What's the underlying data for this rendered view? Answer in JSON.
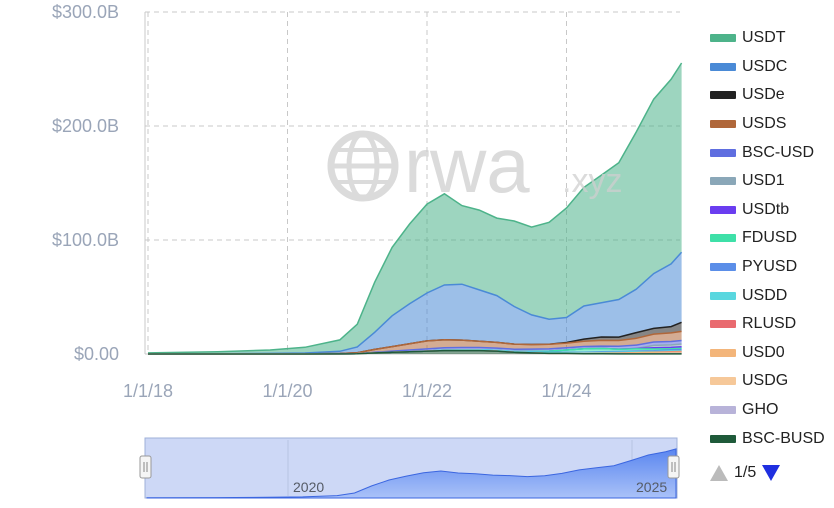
{
  "chart_data": {
    "type": "area",
    "stacked": true,
    "y_ticks": [
      "$0.00",
      "$100.0B",
      "$200.0B",
      "$300.0B"
    ],
    "x_ticks": [
      "1/1/18",
      "1/1/20",
      "1/1/22",
      "1/1/24"
    ],
    "ylim": [
      0,
      300
    ],
    "grid": true,
    "legend_position": "right",
    "x": [
      2018.0,
      2019.0,
      2019.75,
      2020.25,
      2020.75,
      2021.0,
      2021.25,
      2021.5,
      2021.75,
      2022.0,
      2022.25,
      2022.5,
      2022.75,
      2023.0,
      2023.25,
      2023.5,
      2023.75,
      2024.0,
      2024.25,
      2024.5,
      2024.75,
      2025.0,
      2025.25,
      2025.5,
      2025.65
    ],
    "series": [
      {
        "name": "BSC-BUSD",
        "color": "#1f5a3a",
        "values": [
          0,
          0,
          0,
          0,
          0.1,
          0.3,
          1.0,
          1.5,
          2.0,
          2.5,
          3.0,
          3.0,
          3.0,
          2.5,
          1.5,
          1.0,
          0.5,
          0.5,
          0.3,
          0.2,
          0.1,
          0.1,
          0.1,
          0.1,
          0.1
        ]
      },
      {
        "name": "GHO",
        "color": "#b8b3d9",
        "values": [
          0,
          0,
          0,
          0,
          0,
          0,
          0,
          0,
          0,
          0,
          0,
          0,
          0,
          0,
          0,
          0,
          0,
          0.05,
          0.1,
          0.1,
          0.2,
          0.2,
          0.2,
          0.3,
          0.3
        ]
      },
      {
        "name": "USDG",
        "color": "#f6c899",
        "values": [
          0,
          0,
          0,
          0,
          0,
          0,
          0,
          0,
          0,
          0,
          0,
          0,
          0,
          0,
          0,
          0,
          0,
          0,
          0,
          0,
          0,
          0,
          0,
          0.2,
          0.3
        ]
      },
      {
        "name": "USD0",
        "color": "#f3b57a",
        "values": [
          0,
          0,
          0,
          0,
          0,
          0,
          0,
          0,
          0,
          0,
          0,
          0,
          0,
          0,
          0,
          0,
          0,
          0,
          0.1,
          0.3,
          0.5,
          0.8,
          1.0,
          1.0,
          1.0
        ]
      },
      {
        "name": "RLUSD",
        "color": "#e96a6f",
        "values": [
          0,
          0,
          0,
          0,
          0,
          0,
          0,
          0,
          0,
          0,
          0,
          0,
          0,
          0,
          0,
          0,
          0,
          0,
          0,
          0,
          0,
          0.1,
          0.2,
          0.4,
          0.5
        ]
      },
      {
        "name": "USDD",
        "color": "#59d7df",
        "values": [
          0,
          0,
          0,
          0,
          0,
          0,
          0,
          0,
          0,
          0,
          0.5,
          0.7,
          0.7,
          0.7,
          0.7,
          0.7,
          0.7,
          0.7,
          0.7,
          0.7,
          0.7,
          0.7,
          0.7,
          0.7,
          0.7
        ]
      },
      {
        "name": "PYUSD",
        "color": "#5b8ee8",
        "values": [
          0,
          0,
          0,
          0,
          0,
          0,
          0,
          0,
          0,
          0,
          0,
          0,
          0,
          0,
          0,
          0.1,
          0.3,
          0.3,
          0.4,
          0.6,
          0.7,
          0.6,
          0.7,
          0.9,
          1.0
        ]
      },
      {
        "name": "FDUSD",
        "color": "#3ee0a8",
        "values": [
          0,
          0,
          0,
          0,
          0,
          0,
          0,
          0,
          0,
          0,
          0,
          0,
          0,
          0,
          0,
          0.5,
          1.0,
          2.0,
          3.0,
          3.0,
          2.0,
          2.0,
          1.5,
          1.0,
          1.0
        ]
      },
      {
        "name": "USDtb",
        "color": "#6a3df0",
        "values": [
          0,
          0,
          0,
          0,
          0,
          0,
          0,
          0,
          0,
          0,
          0,
          0,
          0,
          0,
          0,
          0,
          0,
          0,
          0,
          0,
          0.1,
          0.3,
          1.0,
          1.2,
          1.4
        ]
      },
      {
        "name": "USD1",
        "color": "#8aa7b8",
        "values": [
          0,
          0,
          0,
          0,
          0,
          0,
          0,
          0,
          0,
          0,
          0,
          0,
          0,
          0,
          0,
          0,
          0,
          0,
          0,
          0,
          0,
          0,
          2.1,
          2.2,
          2.5
        ]
      },
      {
        "name": "BSC-USD",
        "color": "#5f6ee0",
        "values": [
          0,
          0,
          0,
          0,
          0,
          0,
          0.5,
          1.0,
          1.5,
          2.0,
          2.0,
          2.0,
          2.0,
          2.0,
          2.0,
          2.0,
          2.0,
          2.0,
          2.0,
          2.0,
          2.5,
          3.0,
          3.0,
          3.0,
          3.0
        ]
      },
      {
        "name": "USDS",
        "color": "#b0673a",
        "values": [
          0,
          0,
          0,
          0.05,
          0.3,
          0.8,
          2.5,
          4.0,
          5.5,
          7.0,
          7.0,
          6.5,
          5.5,
          5.0,
          4.5,
          4.0,
          4.0,
          4.0,
          4.5,
          5.0,
          5.0,
          6.0,
          7.0,
          7.5,
          8.0
        ]
      },
      {
        "name": "USDe",
        "color": "#222222",
        "values": [
          0,
          0,
          0,
          0,
          0,
          0,
          0,
          0,
          0,
          0,
          0,
          0,
          0,
          0,
          0,
          0,
          0,
          0.5,
          2.0,
          3.0,
          3.0,
          5.0,
          5.0,
          5.5,
          8.0
        ]
      },
      {
        "name": "USDC",
        "color": "#4a8ad6",
        "values": [
          0,
          0.3,
          0.5,
          0.8,
          2.0,
          5.0,
          15.0,
          27.0,
          35.0,
          42.0,
          48.0,
          49.0,
          45.0,
          41.0,
          33.0,
          26.0,
          22.0,
          22.0,
          29.0,
          30.0,
          33.0,
          38.0,
          48.0,
          55.0,
          61.5
        ]
      },
      {
        "name": "USDT",
        "color": "#4db38a",
        "values": [
          1.0,
          1.7,
          3.0,
          5.0,
          10.0,
          20.0,
          44.0,
          60.0,
          70.0,
          78.0,
          80.0,
          69.0,
          70.0,
          68.0,
          75.0,
          77.0,
          85.0,
          96.0,
          104.0,
          112.0,
          120.0,
          138.0,
          153.0,
          162.0,
          166.0
        ]
      }
    ],
    "navigator_labels": [
      "2020",
      "2025"
    ]
  },
  "watermark": {
    "brand": "rwa",
    "suffix": ".xyz"
  },
  "legend": {
    "items": [
      "USDT",
      "USDC",
      "USDe",
      "USDS",
      "BSC-USD",
      "USD1",
      "USDtb",
      "FDUSD",
      "PYUSD",
      "USDD",
      "RLUSD",
      "USD0",
      "USDG",
      "GHO",
      "BSC-BUSD"
    ],
    "colors": [
      "#4db38a",
      "#4a8ad6",
      "#222222",
      "#b0673a",
      "#5f6ee0",
      "#8aa7b8",
      "#6a3df0",
      "#3ee0a8",
      "#5b8ee8",
      "#59d7df",
      "#e96a6f",
      "#f3b57a",
      "#f6c899",
      "#b8b3d9",
      "#1f5a3a"
    ]
  },
  "pager": {
    "text": "1/5"
  }
}
